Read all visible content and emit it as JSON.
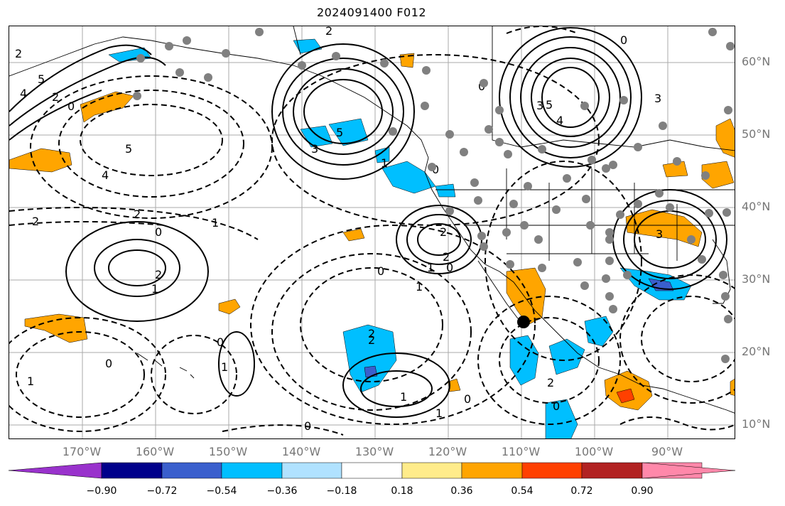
{
  "title": "2024091400 F012",
  "lat_labels": [
    "60°N",
    "50°N",
    "40°N",
    "30°N",
    "20°N",
    "10°N"
  ],
  "lon_labels": [
    "170°W",
    "160°W",
    "150°W",
    "140°W",
    "130°W",
    "120°W",
    "110°W",
    "100°W",
    "90°W"
  ],
  "colorbar": {
    "colors": [
      "#9932CC",
      "#00008B",
      "#3A5FCD",
      "#00BFFF",
      "#B0E2FF",
      "#FFFFFF",
      "#FFEC8B",
      "#FFA500",
      "#FF4000",
      "#B22222",
      "#FF88AA"
    ],
    "labels": [
      "−0.90",
      "−0.72",
      "−0.54",
      "−0.36",
      "−0.18",
      "0.18",
      "0.36",
      "0.54",
      "0.72",
      "0.90"
    ],
    "extend": "both"
  },
  "contour_labels": [
    "2",
    "5",
    "4",
    "0",
    "2",
    "5",
    "4",
    "2",
    "1",
    "0",
    "2",
    "1",
    "2",
    "3",
    "5",
    "3",
    "2",
    "0",
    "1",
    "3",
    "5",
    "4",
    "0",
    "0",
    "2",
    "3",
    "2",
    "1",
    "0",
    "0",
    "2",
    "0",
    "1",
    "1",
    "2",
    "2",
    "1",
    "0",
    "0",
    "1",
    "1",
    "0",
    "0"
  ],
  "colors": {
    "land_outline": "#000000",
    "grid": "#aaaaaa",
    "station_dot": "#808080",
    "marker_dot": "#000000"
  }
}
